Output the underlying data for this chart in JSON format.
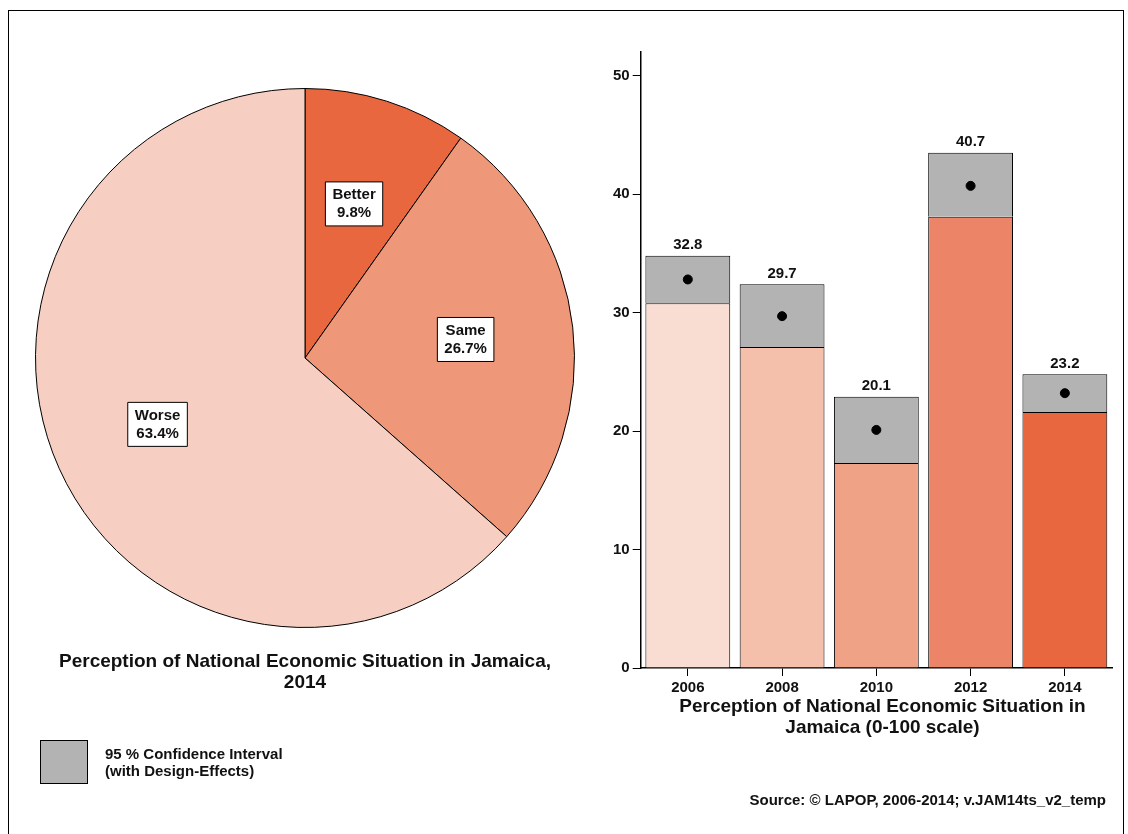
{
  "chart_data": [
    {
      "type": "pie",
      "title": "Perception of National Economic Situation in Jamaica, 2014",
      "categories": [
        "Better",
        "Same",
        "Worse"
      ],
      "values": [
        9.8,
        26.7,
        63.4
      ],
      "colors": [
        "#e8673f",
        "#ee9779",
        "#f6cfc2"
      ],
      "value_labels": [
        "9.8%",
        "26.7%",
        "63.4%"
      ],
      "legend": false
    },
    {
      "type": "bar",
      "title": "Perception of National Economic Situation in Jamaica (0-100 scale)",
      "categories": [
        "2006",
        "2008",
        "2010",
        "2012",
        "2014"
      ],
      "stacked": true,
      "series": [
        {
          "type": "bar",
          "colors": [
            "#f9ddd3",
            "#f4bfab",
            "#f0a287",
            "#ec8567",
            "#e8673f"
          ],
          "values": [
            30.8,
            27.1,
            17.3,
            38.1,
            21.6
          ]
        },
        {
          "type": "bar",
          "name": "95 % Confidence Interval\n(with Design-Effects)",
          "color": "#b3b3b3",
          "values": [
            4.0,
            5.3,
            5.6,
            5.4,
            3.2
          ]
        },
        {
          "type": "scatter",
          "color": "#000000",
          "values": [
            32.8,
            29.7,
            20.1,
            40.7,
            23.2
          ],
          "value_labels": [
            "32.8",
            "29.7",
            "20.1",
            "40.7",
            "23.2"
          ]
        }
      ],
      "ylim": [
        0,
        52
      ],
      "yticks": [
        0,
        10,
        20,
        30,
        40,
        50
      ],
      "grid": false,
      "legend": "bottom left",
      "marker": "circle",
      "annotations": [
        "Source: © LAPOP, 2006-2014; v.JAM14ts_v2_temp"
      ]
    }
  ]
}
